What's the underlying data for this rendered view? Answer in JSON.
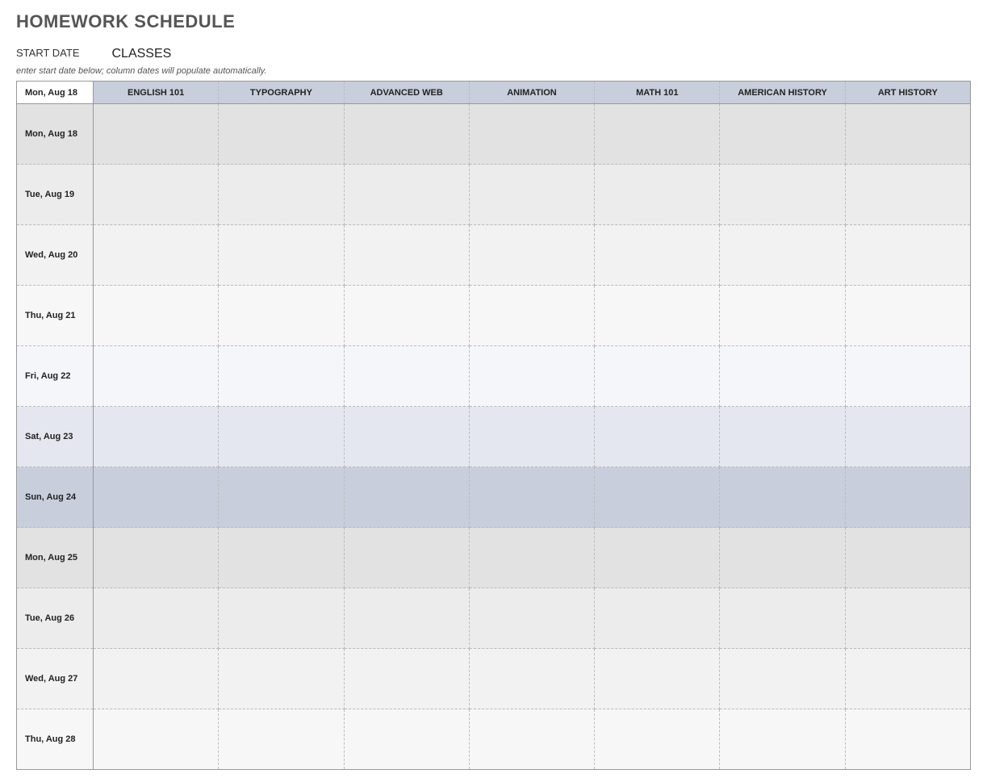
{
  "title": "HOMEWORK SCHEDULE",
  "subheader": {
    "startDateLabel": "START DATE",
    "classesLabel": "CLASSES"
  },
  "instruction": "enter start date below; column dates will populate automatically.",
  "table": {
    "headerDate": "Mon, Aug 18",
    "columns": [
      "ENGLISH 101",
      "TYPOGRAPHY",
      "ADVANCED WEB",
      "ANIMATION",
      "MATH 101",
      "AMERICAN HISTORY",
      "ART HISTORY"
    ],
    "rows": [
      {
        "date": "Mon, Aug 18",
        "bg": "#e2e2e2"
      },
      {
        "date": "Tue, Aug 19",
        "bg": "#ececec"
      },
      {
        "date": "Wed, Aug 20",
        "bg": "#f2f2f2"
      },
      {
        "date": "Thu, Aug 21",
        "bg": "#f7f7f7"
      },
      {
        "date": "Fri, Aug 22",
        "bg": "#f5f6fa"
      },
      {
        "date": "Sat, Aug 23",
        "bg": "#e4e7ef"
      },
      {
        "date": "Sun, Aug 24",
        "bg": "#c9cedc"
      },
      {
        "date": "Mon, Aug 25",
        "bg": "#e2e2e2"
      },
      {
        "date": "Tue, Aug 26",
        "bg": "#ececec"
      },
      {
        "date": "Wed, Aug 27",
        "bg": "#f2f2f2"
      },
      {
        "date": "Thu, Aug 28",
        "bg": "#f7f7f7"
      }
    ]
  },
  "colors": {
    "headerClassBg": "#c9cedc",
    "titleColor": "#555555",
    "textColor": "#222222"
  }
}
